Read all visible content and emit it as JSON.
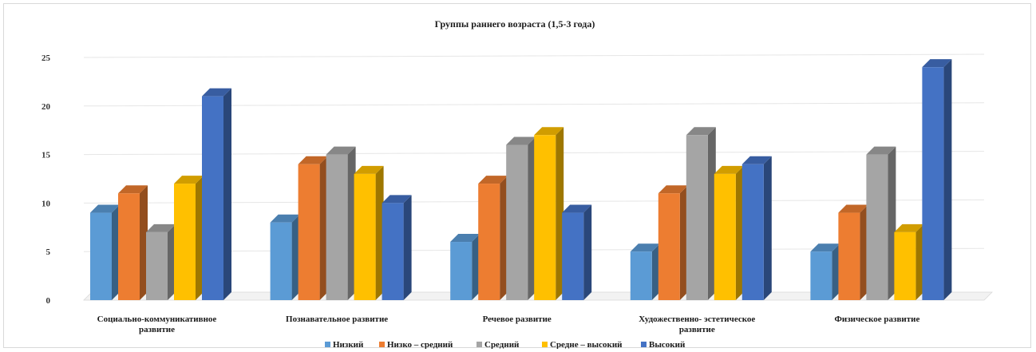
{
  "chart_data": {
    "type": "bar",
    "title": "Группы раннего возраста (1,5-3 года)",
    "categories": [
      [
        "Социально-коммуникативное",
        "развитие"
      ],
      [
        "Познавательное развитие"
      ],
      [
        "Речевое развитие"
      ],
      [
        "Художественно- эстетическое",
        "развитие"
      ],
      [
        "Физическое развитие"
      ]
    ],
    "series": [
      {
        "name": "Низкий",
        "values": [
          9,
          8,
          6,
          5,
          5
        ],
        "color": "#5b9bd5"
      },
      {
        "name": "Низко – средний",
        "values": [
          11,
          14,
          12,
          11,
          9
        ],
        "color": "#ed7d31"
      },
      {
        "name": "Средний",
        "values": [
          7,
          15,
          16,
          17,
          15
        ],
        "color": "#a5a5a5"
      },
      {
        "name": "Средне – высокий",
        "values": [
          12,
          13,
          17,
          13,
          7
        ],
        "color": "#ffc000"
      },
      {
        "name": "Высокий",
        "values": [
          21,
          10,
          9,
          14,
          24
        ],
        "color": "#4472c4"
      }
    ],
    "ylim": [
      0,
      25
    ],
    "yticks": [
      0,
      5,
      10,
      15,
      20,
      25
    ],
    "grid": true,
    "legend_position": "bottom"
  }
}
